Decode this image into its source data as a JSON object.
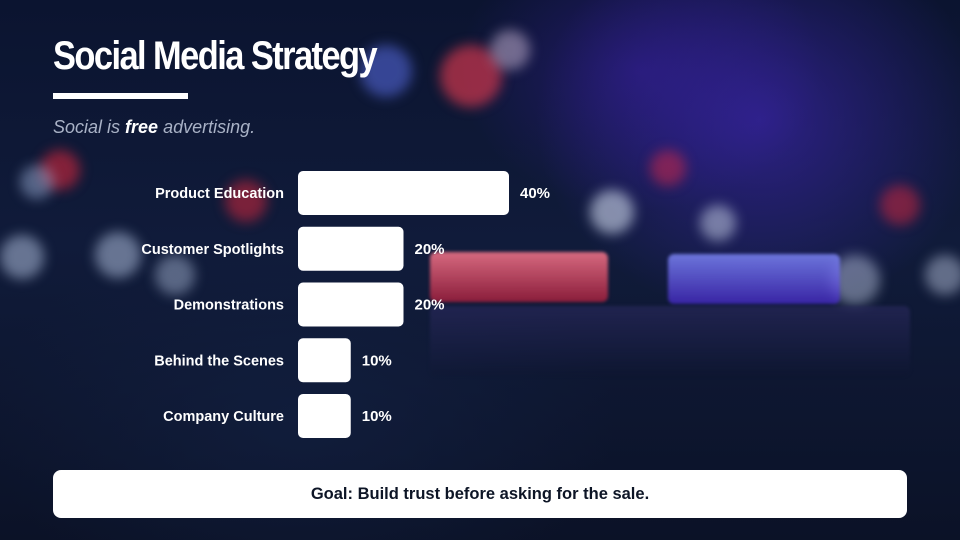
{
  "slide": {
    "title": "Social Media Strategy",
    "subtitle_pre": "Social is ",
    "subtitle_em": "free",
    "subtitle_post": " advertising.",
    "goal": "Goal: Build trust before asking for the sale."
  },
  "colors": {
    "bar": "#ffffff",
    "text": "#ffffff",
    "subtitle": "#a9b2c6",
    "background": "#0a1228"
  },
  "chart_data": {
    "type": "bar",
    "orientation": "horizontal",
    "categories": [
      "Product Education",
      "Customer Spotlights",
      "Demonstrations",
      "Behind the Scenes",
      "Company Culture"
    ],
    "values": [
      40,
      20,
      20,
      10,
      10
    ],
    "value_labels": [
      "40%",
      "20%",
      "20%",
      "10%",
      "10%"
    ],
    "unit": "%",
    "title": "",
    "xlabel": "",
    "ylabel": "",
    "xlim": [
      0,
      40
    ],
    "grid": false,
    "legend": "none"
  }
}
